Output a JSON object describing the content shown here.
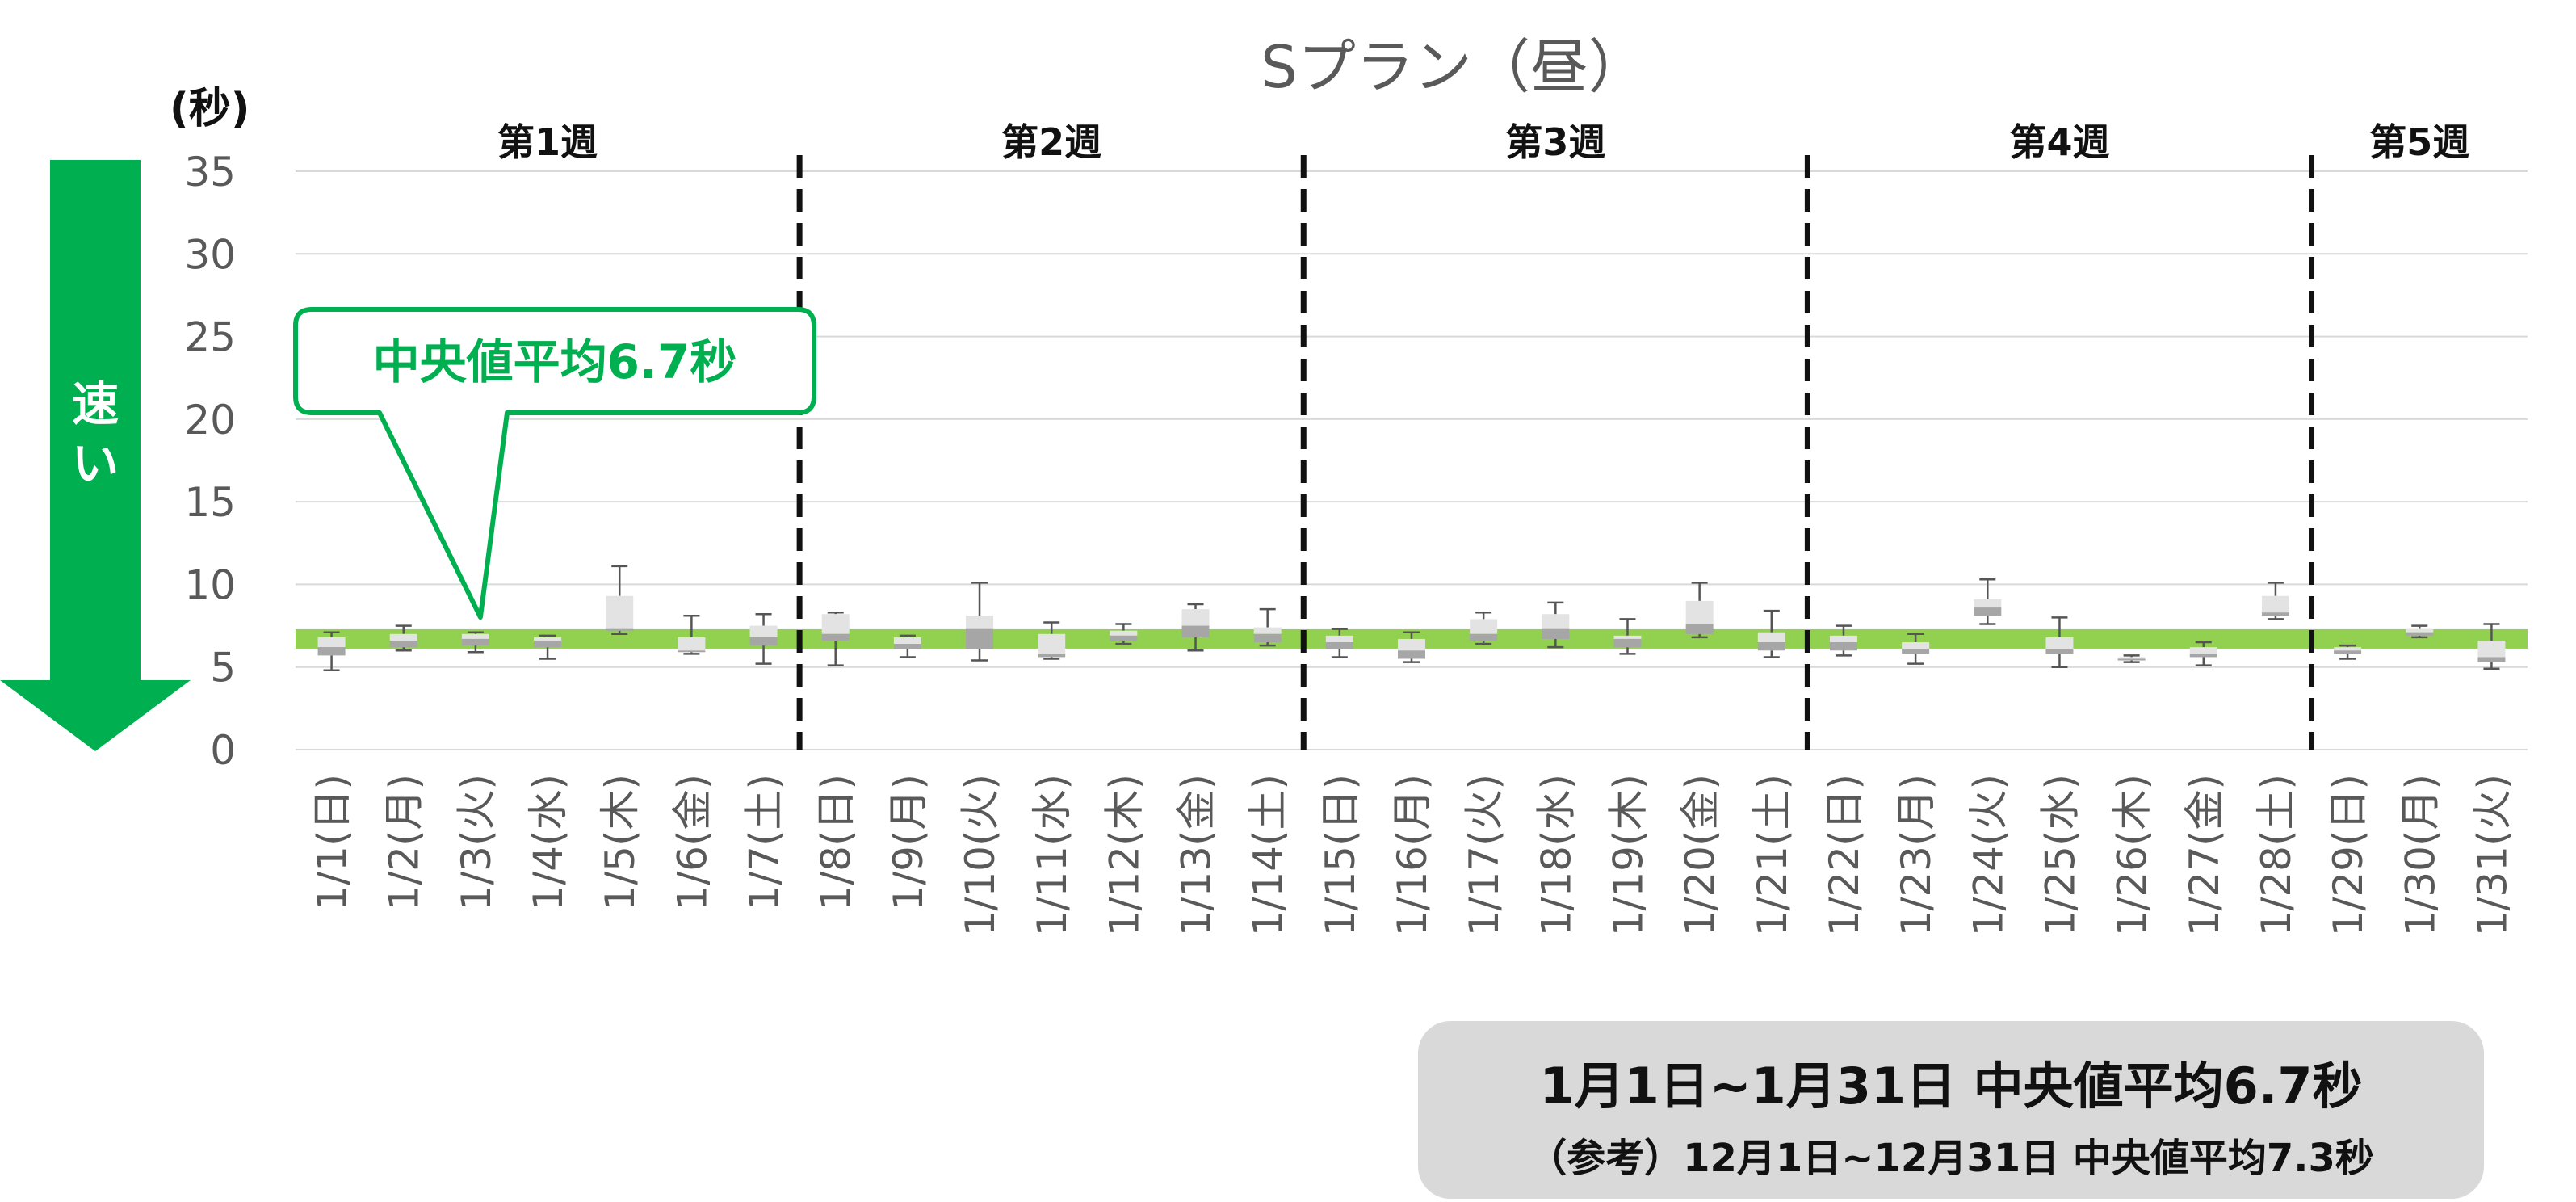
{
  "chart_data": {
    "type": "boxplot",
    "title": "Sプラン（昼）",
    "ylabel": "(秒)",
    "ylim": [
      0,
      35
    ],
    "yticks": [
      0,
      5,
      10,
      15,
      20,
      25,
      30,
      35
    ],
    "grid": true,
    "categories": [
      "1/1(日)",
      "1/2(月)",
      "1/3(火)",
      "1/4(水)",
      "1/5(木)",
      "1/6(金)",
      "1/7(土)",
      "1/8(日)",
      "1/9(月)",
      "1/10(火)",
      "1/11(水)",
      "1/12(木)",
      "1/13(金)",
      "1/14(土)",
      "1/15(日)",
      "1/16(月)",
      "1/17(火)",
      "1/18(水)",
      "1/19(木)",
      "1/20(金)",
      "1/21(土)",
      "1/22(日)",
      "1/23(月)",
      "1/24(火)",
      "1/25(水)",
      "1/26(木)",
      "1/27(金)",
      "1/28(土)",
      "1/29(日)",
      "1/30(月)",
      "1/31(火)"
    ],
    "boxes": [
      {
        "min": 4.8,
        "q1": 5.7,
        "median": 6.2,
        "q3": 6.8,
        "max": 7.1
      },
      {
        "min": 6.0,
        "q1": 6.2,
        "median": 6.6,
        "q3": 7.0,
        "max": 7.5
      },
      {
        "min": 5.9,
        "q1": 6.3,
        "median": 6.7,
        "q3": 7.0,
        "max": 7.1
      },
      {
        "min": 5.5,
        "q1": 6.2,
        "median": 6.6,
        "q3": 6.8,
        "max": 6.9
      },
      {
        "min": 7.0,
        "q1": 7.2,
        "median": 7.3,
        "q3": 9.3,
        "max": 11.1
      },
      {
        "min": 5.8,
        "q1": 5.9,
        "median": 6.0,
        "q3": 6.8,
        "max": 8.1
      },
      {
        "min": 5.2,
        "q1": 6.3,
        "median": 6.8,
        "q3": 7.5,
        "max": 8.2
      },
      {
        "min": 5.1,
        "q1": 6.6,
        "median": 7.0,
        "q3": 8.2,
        "max": 8.3
      },
      {
        "min": 5.6,
        "q1": 6.1,
        "median": 6.4,
        "q3": 6.8,
        "max": 6.9
      },
      {
        "min": 5.4,
        "q1": 6.1,
        "median": 7.3,
        "q3": 8.1,
        "max": 10.1
      },
      {
        "min": 5.5,
        "q1": 5.6,
        "median": 5.8,
        "q3": 7.0,
        "max": 7.7
      },
      {
        "min": 6.4,
        "q1": 6.6,
        "median": 6.9,
        "q3": 7.2,
        "max": 7.6
      },
      {
        "min": 6.0,
        "q1": 6.8,
        "median": 7.5,
        "q3": 8.5,
        "max": 8.8
      },
      {
        "min": 6.3,
        "q1": 6.5,
        "median": 7.0,
        "q3": 7.4,
        "max": 8.5
      },
      {
        "min": 5.6,
        "q1": 6.1,
        "median": 6.5,
        "q3": 6.9,
        "max": 7.3
      },
      {
        "min": 5.3,
        "q1": 5.5,
        "median": 6.0,
        "q3": 6.7,
        "max": 7.1
      },
      {
        "min": 6.4,
        "q1": 6.6,
        "median": 7.0,
        "q3": 7.9,
        "max": 8.3
      },
      {
        "min": 6.2,
        "q1": 6.7,
        "median": 7.3,
        "q3": 8.2,
        "max": 8.9
      },
      {
        "min": 5.8,
        "q1": 6.2,
        "median": 6.7,
        "q3": 6.9,
        "max": 7.9
      },
      {
        "min": 6.8,
        "q1": 7.0,
        "median": 7.6,
        "q3": 9.0,
        "max": 10.1
      },
      {
        "min": 5.6,
        "q1": 6.0,
        "median": 6.5,
        "q3": 7.1,
        "max": 8.4
      },
      {
        "min": 5.7,
        "q1": 6.0,
        "median": 6.5,
        "q3": 6.9,
        "max": 7.5
      },
      {
        "min": 5.2,
        "q1": 5.8,
        "median": 6.1,
        "q3": 6.5,
        "max": 7.0
      },
      {
        "min": 7.6,
        "q1": 8.1,
        "median": 8.6,
        "q3": 9.1,
        "max": 10.3
      },
      {
        "min": 5.0,
        "q1": 5.8,
        "median": 6.1,
        "q3": 6.8,
        "max": 8.0
      },
      {
        "min": 5.3,
        "q1": 5.4,
        "median": 5.5,
        "q3": 5.6,
        "max": 5.7
      },
      {
        "min": 5.1,
        "q1": 5.6,
        "median": 5.8,
        "q3": 6.2,
        "max": 6.5
      },
      {
        "min": 7.9,
        "q1": 8.1,
        "median": 8.3,
        "q3": 9.3,
        "max": 10.1
      },
      {
        "min": 5.5,
        "q1": 5.8,
        "median": 6.0,
        "q3": 6.2,
        "max": 6.3
      },
      {
        "min": 6.8,
        "q1": 6.9,
        "median": 7.1,
        "q3": 7.3,
        "max": 7.5
      },
      {
        "min": 4.9,
        "q1": 5.3,
        "median": 5.6,
        "q3": 6.6,
        "max": 7.6
      }
    ],
    "reference_line": {
      "value": 6.7,
      "color": "#92d050"
    },
    "weeks": [
      {
        "label": "第1週",
        "start": 0,
        "end": 6
      },
      {
        "label": "第2週",
        "start": 7,
        "end": 13
      },
      {
        "label": "第3週",
        "start": 14,
        "end": 20
      },
      {
        "label": "第4週",
        "start": 21,
        "end": 27
      },
      {
        "label": "第5週",
        "start": 28,
        "end": 30
      }
    ],
    "callout": {
      "text": "中央値平均6.7秒",
      "anchor_index": 2,
      "color": "#00b050"
    },
    "arrow": {
      "text": "速い",
      "color": "#00b050"
    },
    "colors": {
      "box_light": "#e3e3e3",
      "box_dark": "#a6a6a6",
      "grid": "#d9d9d9",
      "axis_text": "#595959"
    }
  },
  "summary": {
    "main": "1月1日~1月31日  中央値平均6.7秒",
    "reference": "（参考）12月1日~12月31日  中央値平均7.3秒"
  }
}
